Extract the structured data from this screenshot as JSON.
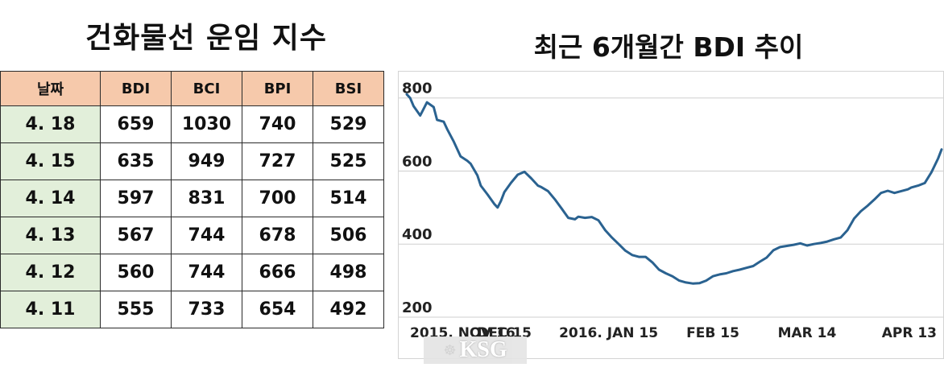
{
  "left_title": "건화물선 운임 지수",
  "right_title": "최근 6개월간 BDI 추이",
  "table": {
    "headers": [
      "날짜",
      "BDI",
      "BCI",
      "BPI",
      "BSI"
    ],
    "rows": [
      [
        "4. 18",
        "659",
        "1030",
        "740",
        "529"
      ],
      [
        "4. 15",
        "635",
        "949",
        "727",
        "525"
      ],
      [
        "4. 14",
        "597",
        "831",
        "700",
        "514"
      ],
      [
        "4. 13",
        "567",
        "744",
        "678",
        "506"
      ],
      [
        "4. 12",
        "560",
        "744",
        "666",
        "498"
      ],
      [
        "4. 11",
        "555",
        "733",
        "654",
        "492"
      ]
    ]
  },
  "watermark": "KSG",
  "colors": {
    "line": "#2a6290",
    "header_bg": "#f6c9ab",
    "date_bg": "#e2efda",
    "grid": "#cfcfcf"
  },
  "chart_data": {
    "type": "line",
    "title": "최근 6개월간 BDI 추이",
    "xlabel": "",
    "ylabel": "",
    "ylim": [
      200,
      850
    ],
    "yticks": [
      200,
      400,
      600,
      800
    ],
    "grid": true,
    "x_tick_labels": [
      "2015. NOV 16",
      "DEC 15",
      "2016. JAN 15",
      "FEB 15",
      "MAR 14",
      "APR 13"
    ],
    "x_tick_days": [
      0,
      29,
      60,
      91,
      119,
      149
    ],
    "series": [
      {
        "name": "",
        "x": [
          0,
          1,
          2,
          4,
          5,
          6,
          8,
          9,
          11,
          12,
          14,
          16,
          18,
          19,
          21,
          22,
          24,
          26,
          27,
          28,
          29,
          31,
          33,
          35,
          37,
          39,
          40,
          42,
          44,
          46,
          48,
          50,
          51,
          53,
          55,
          57,
          59,
          61,
          63,
          65,
          67,
          69,
          71,
          73,
          75,
          77,
          79,
          81,
          83,
          85,
          87,
          89,
          91,
          93,
          95,
          97,
          99,
          101,
          103,
          105,
          107,
          109,
          111,
          113,
          115,
          117,
          119,
          121,
          123,
          125,
          127,
          129,
          131,
          133,
          135,
          137,
          139,
          141,
          143,
          145,
          147,
          149,
          150,
          152,
          154,
          156,
          158,
          159
        ],
        "y": [
          810,
          800,
          778,
          752,
          770,
          788,
          775,
          740,
          735,
          715,
          680,
          640,
          628,
          620,
          588,
          560,
          536,
          510,
          500,
          518,
          542,
          568,
          590,
          598,
          580,
          560,
          556,
          545,
          523,
          498,
          472,
          468,
          475,
          472,
          474,
          465,
          438,
          418,
          400,
          382,
          370,
          365,
          365,
          350,
          330,
          320,
          312,
          300,
          295,
          292,
          293,
          300,
          312,
          317,
          320,
          326,
          330,
          335,
          340,
          352,
          363,
          383,
          392,
          395,
          398,
          402,
          396,
          400,
          403,
          407,
          413,
          418,
          438,
          470,
          490,
          505,
          522,
          540,
          546,
          540,
          545,
          550,
          555,
          560,
          567,
          597,
          635,
          659
        ]
      }
    ]
  }
}
